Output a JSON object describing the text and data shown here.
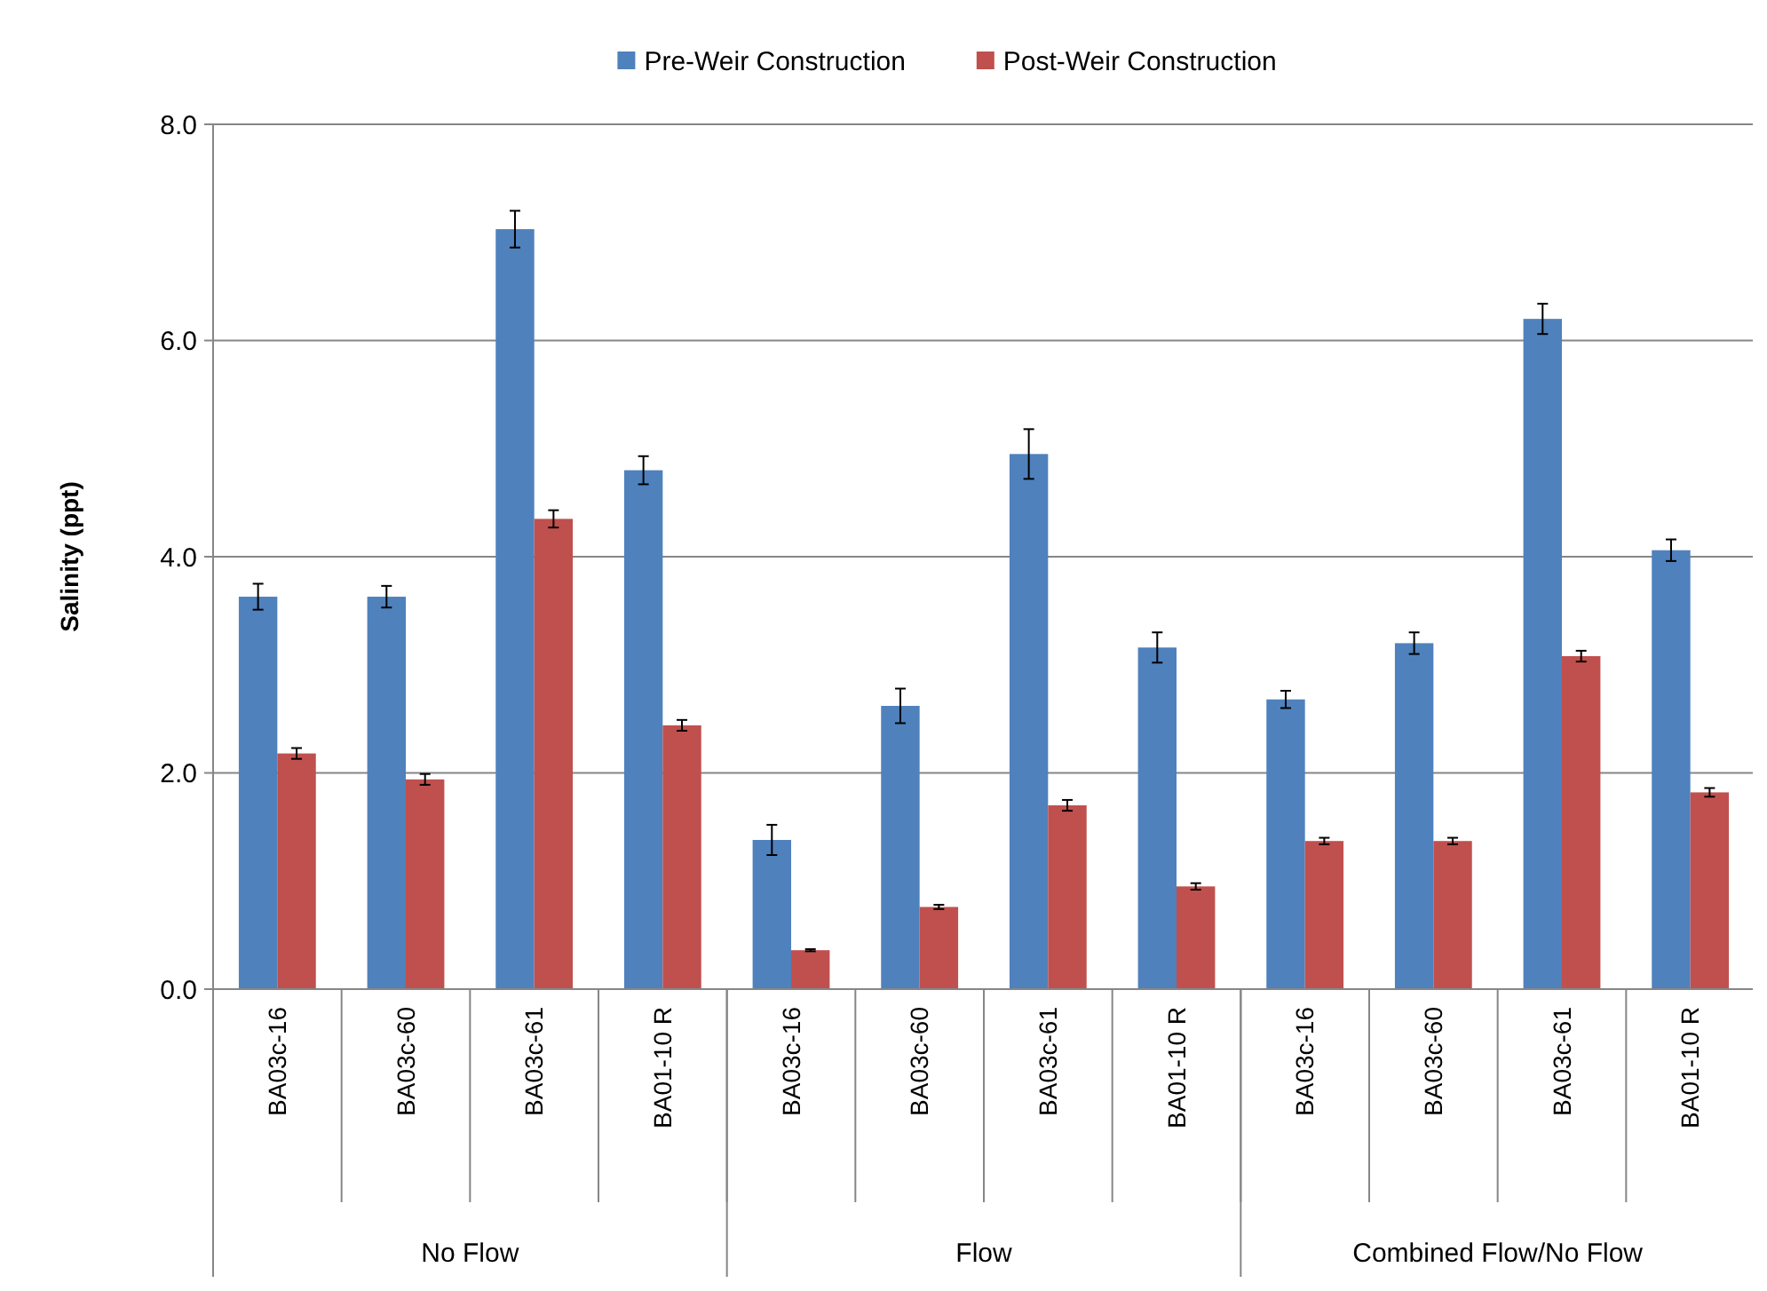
{
  "chart_data": {
    "type": "bar",
    "ylabel": "Salinity (ppt)",
    "categories": [
      "BA03c-16",
      "BA03c-60",
      "BA03c-61",
      "BA01-10 R",
      "BA03c-16",
      "BA03c-60",
      "BA03c-61",
      "BA01-10 R",
      "BA03c-16",
      "BA03c-60",
      "BA03c-61",
      "BA01-10 R"
    ],
    "annotations": [
      "No Flow",
      "Flow",
      "Combined Flow/No Flow"
    ],
    "series": [
      {
        "name": "Pre-Weir Construction",
        "color": "#4f81bd",
        "values": [
          3.63,
          3.63,
          7.03,
          4.8,
          1.38,
          2.62,
          4.95,
          3.16,
          2.68,
          3.2,
          6.2,
          4.06
        ],
        "errors": [
          0.12,
          0.1,
          0.17,
          0.13,
          0.14,
          0.16,
          0.23,
          0.14,
          0.08,
          0.1,
          0.14,
          0.1
        ]
      },
      {
        "name": "Post-Weir Construction",
        "color": "#c0504d",
        "values": [
          2.18,
          1.94,
          4.35,
          2.44,
          0.36,
          0.76,
          1.7,
          0.95,
          1.37,
          1.37,
          3.08,
          1.82
        ],
        "errors": [
          0.05,
          0.05,
          0.08,
          0.05,
          0.01,
          0.02,
          0.05,
          0.03,
          0.03,
          0.03,
          0.05,
          0.04
        ]
      }
    ],
    "ylim": [
      0,
      8
    ],
    "yticks": [
      {
        "value": 0,
        "label": "0.0"
      },
      {
        "value": 2,
        "label": "2.0"
      },
      {
        "value": 4,
        "label": "4.0"
      },
      {
        "value": 6,
        "label": "6.0"
      },
      {
        "value": 8,
        "label": "8.0"
      }
    ],
    "grid": "y",
    "legend": "top"
  }
}
